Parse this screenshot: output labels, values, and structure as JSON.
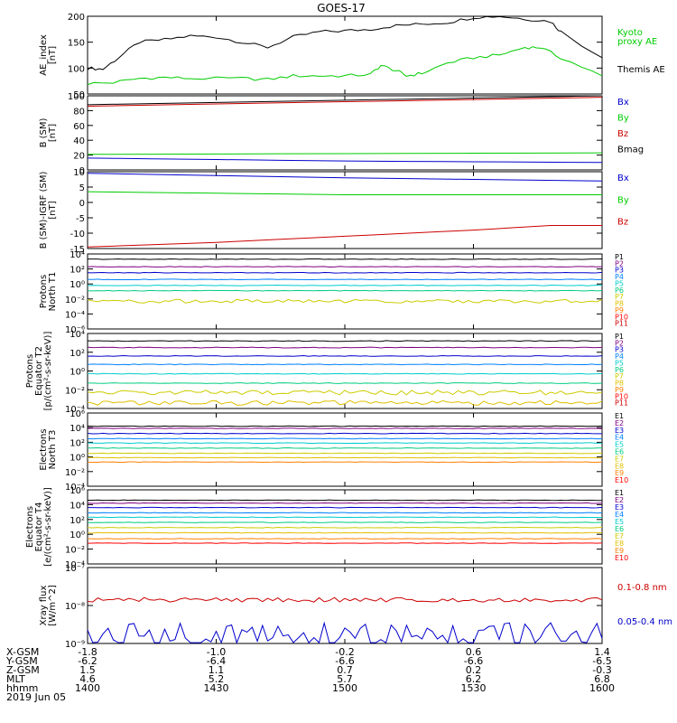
{
  "title": "GOES-17",
  "date_label": "2019 Jun 05",
  "colors": {
    "black": "#000000",
    "green": "#00cc00",
    "red": "#cc0000",
    "blue": "#0000cc",
    "p_channels": [
      "#000000",
      "#800080",
      "#0000cc",
      "#0080ff",
      "#00cccc",
      "#00cc80",
      "#cccc00",
      "#e0c000",
      "#ff8000",
      "#ff0000",
      "#cc0000"
    ],
    "e_channels": [
      "#000000",
      "#800080",
      "#0000cc",
      "#0080ff",
      "#00cccc",
      "#00cc80",
      "#cccc00",
      "#e0c000",
      "#ff8000",
      "#ff0000"
    ]
  },
  "chart_data": [
    {
      "type": "line",
      "id": "ae",
      "ylabel": [
        "AE_index",
        "[nT]"
      ],
      "ylim": [
        50,
        200
      ],
      "yticks": [
        "50",
        "100",
        "150",
        "200"
      ],
      "ytick_values": [
        50,
        100,
        150,
        200
      ],
      "legend": [
        {
          "label": "Kyoto",
          "color": "#00cc00"
        },
        {
          "label": "proxy AE",
          "color": "#00cc00"
        },
        {
          "label": "Themis AE",
          "color": "#000000"
        }
      ],
      "series": [
        {
          "name": "Themis AE",
          "color": "#000000",
          "points": [
            [
              0,
              100
            ],
            [
              3,
              98
            ],
            [
              6,
              120
            ],
            [
              10,
              150
            ],
            [
              15,
              155
            ],
            [
              20,
              162
            ],
            [
              25,
              160
            ],
            [
              30,
              150
            ],
            [
              35,
              140
            ],
            [
              40,
              160
            ],
            [
              45,
              170
            ],
            [
              50,
              172
            ],
            [
              55,
              175
            ],
            [
              60,
              182
            ],
            [
              65,
              185
            ],
            [
              70,
              188
            ],
            [
              75,
              198
            ],
            [
              80,
              200
            ],
            [
              85,
              195
            ],
            [
              90,
              190
            ],
            [
              92,
              170
            ],
            [
              100,
              120
            ]
          ]
        },
        {
          "name": "Kyoto proxy AE",
          "color": "#00cc00",
          "points": [
            [
              0,
              70
            ],
            [
              5,
              72
            ],
            [
              10,
              80
            ],
            [
              15,
              82
            ],
            [
              20,
              80
            ],
            [
              30,
              80
            ],
            [
              35,
              78
            ],
            [
              40,
              85
            ],
            [
              45,
              85
            ],
            [
              50,
              85
            ],
            [
              55,
              88
            ],
            [
              57,
              105
            ],
            [
              60,
              95
            ],
            [
              62,
              85
            ],
            [
              65,
              90
            ],
            [
              70,
              110
            ],
            [
              75,
              120
            ],
            [
              80,
              125
            ],
            [
              85,
              140
            ],
            [
              88,
              140
            ],
            [
              92,
              120
            ],
            [
              100,
              85
            ]
          ]
        }
      ]
    },
    {
      "type": "line",
      "id": "bsm",
      "ylabel": [
        "B (SM)",
        "[nT]"
      ],
      "ylim": [
        0,
        100
      ],
      "yticks": [
        "0",
        "20",
        "40",
        "60",
        "80",
        "100"
      ],
      "ytick_values": [
        0,
        20,
        40,
        60,
        80,
        100
      ],
      "minor_ticks": true,
      "legend": [
        {
          "label": "Bx",
          "color": "#0000cc"
        },
        {
          "label": "By",
          "color": "#00cc00"
        },
        {
          "label": "Bz",
          "color": "#cc0000"
        },
        {
          "label": "Bmag",
          "color": "#000000"
        }
      ],
      "series": [
        {
          "name": "Bx",
          "color": "#0000cc",
          "points": [
            [
              0,
              16
            ],
            [
              25,
              14
            ],
            [
              50,
              12
            ],
            [
              75,
              11
            ],
            [
              100,
              10
            ]
          ]
        },
        {
          "name": "By",
          "color": "#00cc00",
          "points": [
            [
              0,
              21
            ],
            [
              50,
              22
            ],
            [
              100,
              23
            ]
          ]
        },
        {
          "name": "Bz",
          "color": "#cc0000",
          "points": [
            [
              0,
              86
            ],
            [
              25,
              89
            ],
            [
              50,
              92
            ],
            [
              75,
              95
            ],
            [
              100,
              98
            ]
          ]
        },
        {
          "name": "Bmag",
          "color": "#000000",
          "points": [
            [
              0,
              88
            ],
            [
              25,
              91
            ],
            [
              50,
              94
            ],
            [
              75,
              97
            ],
            [
              100,
              100
            ]
          ]
        }
      ]
    },
    {
      "type": "line",
      "id": "bigrf",
      "ylabel": [
        "B (SM)-IGRF (SM)",
        "[nT]"
      ],
      "ylim": [
        -15,
        10
      ],
      "yticks": [
        "-15",
        "-10",
        "-5",
        "0",
        "5",
        "10"
      ],
      "ytick_values": [
        -15,
        -10,
        -5,
        0,
        5,
        10
      ],
      "legend": [
        {
          "label": "Bx",
          "color": "#0000cc"
        },
        {
          "label": "By",
          "color": "#00cc00"
        },
        {
          "label": "Bz",
          "color": "#cc0000"
        }
      ],
      "series": [
        {
          "name": "Bx",
          "color": "#0000cc",
          "points": [
            [
              0,
              9.5
            ],
            [
              50,
              8
            ],
            [
              100,
              7
            ]
          ]
        },
        {
          "name": "By",
          "color": "#00cc00",
          "points": [
            [
              0,
              3.5
            ],
            [
              50,
              2.5
            ],
            [
              100,
              2.5
            ]
          ]
        },
        {
          "name": "Bz",
          "color": "#cc0000",
          "points": [
            [
              0,
              -14.5
            ],
            [
              25,
              -13
            ],
            [
              50,
              -11
            ],
            [
              75,
              -9
            ],
            [
              90,
              -7.5
            ],
            [
              100,
              -7.5
            ]
          ]
        }
      ]
    },
    {
      "type": "line",
      "id": "pt1",
      "log": true,
      "ylabel": [
        "Protons",
        "North T1"
      ],
      "ylim": [
        -6,
        4
      ],
      "yticks": [
        "10⁴",
        "10²",
        "10⁰",
        "10⁻²",
        "10⁻⁴",
        "10⁻⁶"
      ],
      "ytick_values": [
        4,
        2,
        0,
        -2,
        -4,
        -6
      ],
      "legend_labels": [
        "P1",
        "P2",
        "P3",
        "P4",
        "P5",
        "P6",
        "P7",
        "P8",
        "P9",
        "P10",
        "P11"
      ],
      "series_levels": [
        3.3,
        2.3,
        1.5,
        0.6,
        -0.2,
        -0.9,
        -2.3,
        null,
        null,
        null,
        null
      ]
    },
    {
      "type": "line",
      "id": "pt2",
      "log": true,
      "ylabel": [
        "Protons",
        "Equator T2",
        "[p/(cm²-s-sr-keV)]"
      ],
      "ylim": [
        -4,
        4
      ],
      "yticks": [
        "10⁴",
        "10²",
        "10⁰",
        "10⁻²",
        "10⁻⁴"
      ],
      "ytick_values": [
        4,
        2,
        0,
        -2,
        -4
      ],
      "legend_labels": [
        "P1",
        "P2",
        "P3",
        "P4",
        "P5",
        "P6",
        "P7",
        "P8",
        "P9",
        "P10",
        "P11"
      ],
      "series_levels": [
        3.2,
        2.5,
        1.6,
        0.7,
        -0.3,
        -1.3,
        -2.3,
        -3.4,
        null,
        null,
        null
      ]
    },
    {
      "type": "line",
      "id": "et3",
      "log": true,
      "ylabel": [
        "Electrons",
        "North T3"
      ],
      "ylim": [
        -4,
        6
      ],
      "yticks": [
        "10⁶",
        "10⁴",
        "10²",
        "10⁰",
        "10⁻²",
        "10⁻⁴"
      ],
      "ytick_values": [
        6,
        4,
        2,
        0,
        -2,
        -4
      ],
      "legend_labels": [
        "E1",
        "E2",
        "E3",
        "E4",
        "E5",
        "E6",
        "E7",
        "E8",
        "E9",
        "E10"
      ],
      "series_levels": [
        4.2,
        3.9,
        3.2,
        2.5,
        1.9,
        1.2,
        0.5,
        -0.1,
        -0.7,
        null
      ]
    },
    {
      "type": "line",
      "id": "et4",
      "log": true,
      "ylabel": [
        "Electrons",
        "Equator T4",
        "[e/(cm²-s-sr-keV)]"
      ],
      "ylim": [
        -4,
        6
      ],
      "yticks": [
        "10⁶",
        "10⁴",
        "10²",
        "10⁰",
        "10⁻²",
        "10⁻⁴"
      ],
      "ytick_values": [
        6,
        4,
        2,
        0,
        -2,
        -4
      ],
      "legend_labels": [
        "E1",
        "E2",
        "E3",
        "E4",
        "E5",
        "E6",
        "E7",
        "E8",
        "E9",
        "E10"
      ],
      "series_levels": [
        4.6,
        4.2,
        3.6,
        2.9,
        2.3,
        1.6,
        0.9,
        0.2,
        -0.6,
        -1.2
      ]
    },
    {
      "type": "line",
      "id": "xray",
      "log": true,
      "ylabel": [
        "Xray flux",
        "[W/m^2]"
      ],
      "ylim": [
        -9,
        -7
      ],
      "yticks": [
        "10⁻⁷",
        "10⁻⁸",
        "10⁻⁹"
      ],
      "ytick_values": [
        -7,
        -8,
        -9
      ],
      "legend": [
        {
          "label": "0.1-0.8 nm",
          "color": "#cc0000"
        },
        {
          "label": "0.05-0.4 nm",
          "color": "#0000cc"
        }
      ],
      "series_levels": [
        -7.85,
        -8.8
      ]
    }
  ],
  "x_axis": {
    "tick_positions": [
      0,
      25,
      50,
      75,
      100
    ],
    "rows": [
      {
        "label": "X-GSM",
        "values": [
          "-1.8",
          "-1.0",
          "-0.2",
          "0.6",
          "1.4"
        ]
      },
      {
        "label": "Y-GSM",
        "values": [
          "-6.2",
          "-6.4",
          "-6.6",
          "-6.6",
          "-6.5"
        ]
      },
      {
        "label": "Z-GSM",
        "values": [
          "1.5",
          "1.1",
          "0.7",
          "0.2",
          "-0.3"
        ]
      },
      {
        "label": "MLT",
        "values": [
          "4.6",
          "5.2",
          "5.7",
          "6.2",
          "6.8"
        ]
      },
      {
        "label": "hhmm",
        "values": [
          "1400",
          "1430",
          "1500",
          "1530",
          "1600"
        ]
      }
    ]
  }
}
